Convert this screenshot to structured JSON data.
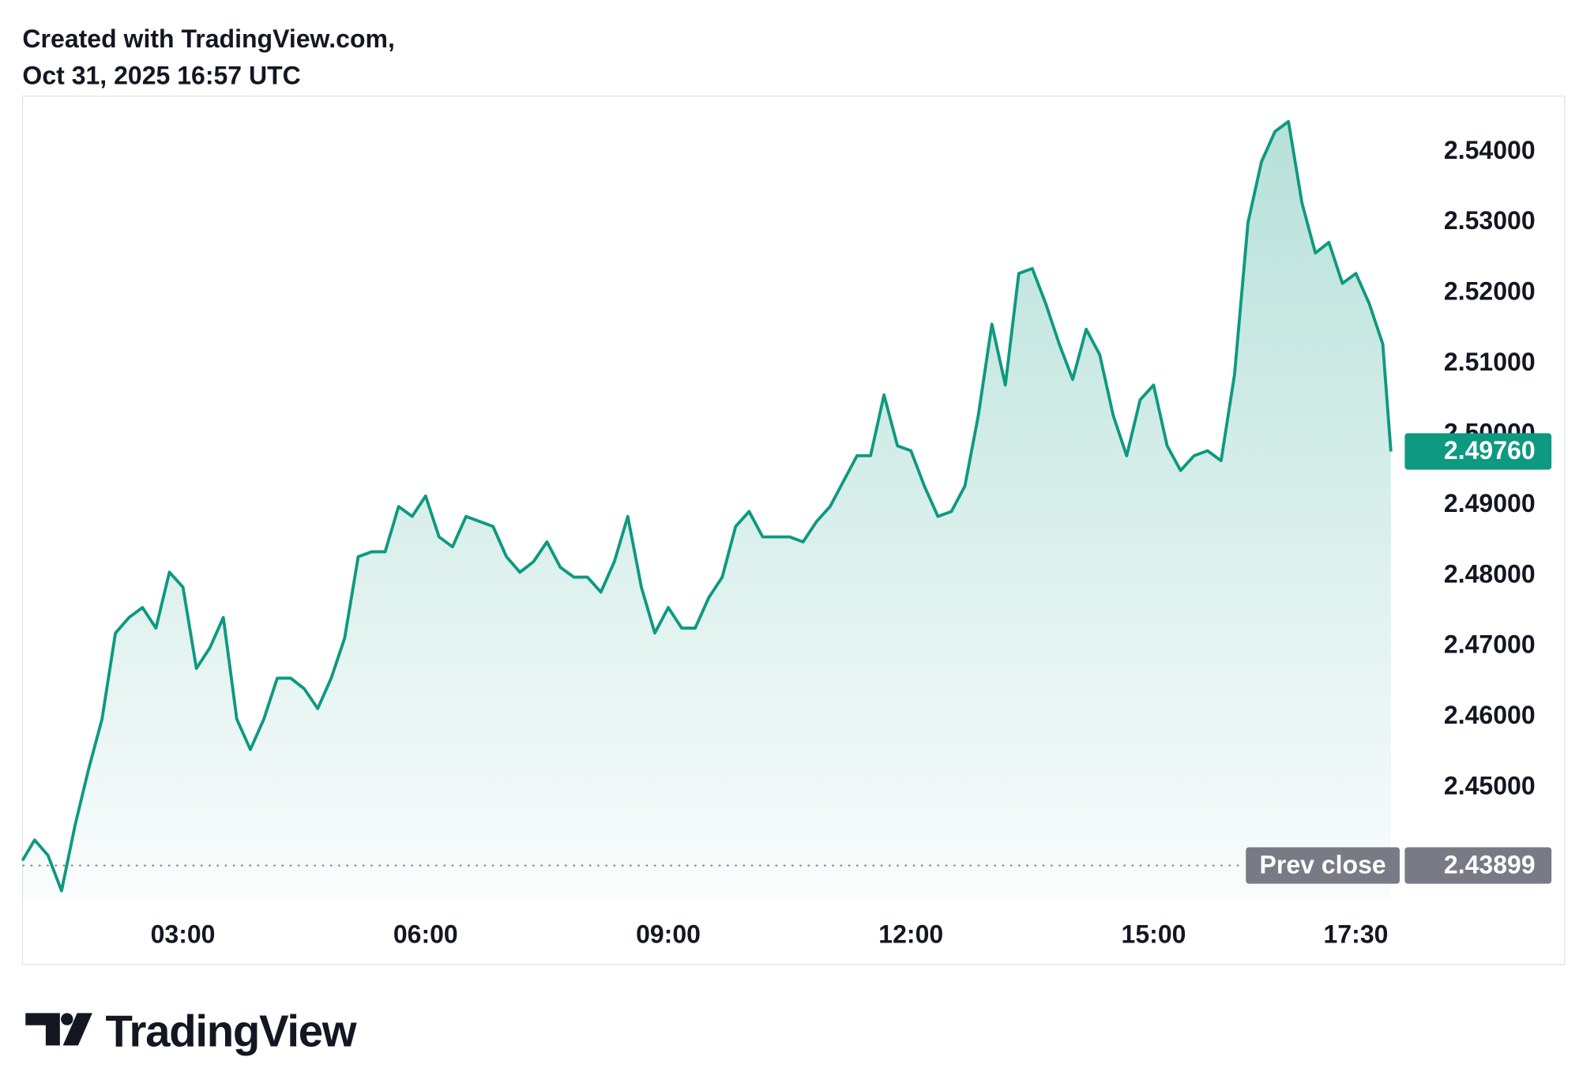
{
  "header": {
    "line1": "Created with TradingView.com,",
    "line2": "Oct 31, 2025 16:57 UTC"
  },
  "footer": {
    "brand": "TradingView"
  },
  "chart_data": {
    "type": "area",
    "color": "#0e9981",
    "x": [
      "01:01",
      "01:10",
      "01:20",
      "01:30",
      "01:40",
      "01:50",
      "02:00",
      "02:10",
      "02:20",
      "02:30",
      "02:40",
      "02:50",
      "03:00",
      "03:10",
      "03:20",
      "03:30",
      "03:40",
      "03:50",
      "04:00",
      "04:10",
      "04:20",
      "04:30",
      "04:40",
      "04:50",
      "05:00",
      "05:10",
      "05:20",
      "05:30",
      "05:40",
      "05:50",
      "06:00",
      "06:10",
      "06:20",
      "06:30",
      "06:40",
      "06:50",
      "07:00",
      "07:10",
      "07:20",
      "07:30",
      "07:40",
      "07:50",
      "08:00",
      "08:10",
      "08:20",
      "08:30",
      "08:40",
      "08:50",
      "09:00",
      "09:10",
      "09:20",
      "09:30",
      "09:40",
      "09:50",
      "10:00",
      "10:10",
      "10:20",
      "10:30",
      "10:40",
      "10:50",
      "11:00",
      "11:10",
      "11:20",
      "11:30",
      "11:40",
      "11:50",
      "12:00",
      "12:10",
      "12:20",
      "12:30",
      "12:40",
      "12:50",
      "13:00",
      "13:10",
      "13:20",
      "13:30",
      "13:40",
      "13:50",
      "14:00",
      "14:10",
      "14:20",
      "14:30",
      "14:40",
      "14:50",
      "15:00",
      "15:10",
      "15:20",
      "15:30",
      "15:40",
      "15:50",
      "16:00",
      "16:10",
      "16:20",
      "16:30",
      "16:40",
      "16:50",
      "17:00",
      "17:10",
      "17:20",
      "17:30",
      "17:40",
      "17:50",
      "17:56"
    ],
    "values": [
      2.4397,
      2.4426,
      2.4404,
      2.4354,
      2.4447,
      2.4526,
      2.4597,
      2.4719,
      2.4741,
      2.4755,
      2.4726,
      2.4805,
      2.4784,
      2.4669,
      2.4698,
      2.4741,
      2.4597,
      2.4554,
      2.4597,
      2.4655,
      2.4655,
      2.464,
      2.4612,
      2.4655,
      2.4712,
      2.4827,
      2.4834,
      2.4834,
      2.4898,
      2.4884,
      2.4913,
      2.4855,
      2.4841,
      2.4884,
      2.4877,
      2.487,
      2.4827,
      2.4805,
      2.482,
      2.4848,
      2.4812,
      2.4798,
      2.4798,
      2.4777,
      2.482,
      2.4884,
      2.4784,
      2.4719,
      2.4755,
      2.4726,
      2.4726,
      2.4769,
      2.4798,
      2.487,
      2.4891,
      2.4855,
      2.4855,
      2.4855,
      2.4848,
      2.4877,
      2.4898,
      2.4934,
      2.497,
      2.497,
      2.5056,
      2.4984,
      2.4977,
      2.4927,
      2.4884,
      2.4891,
      2.4927,
      2.5027,
      2.5156,
      2.507,
      2.5228,
      2.5235,
      2.5185,
      2.5128,
      2.5078,
      2.5149,
      2.5113,
      2.5027,
      2.497,
      2.5049,
      2.507,
      2.4984,
      2.4949,
      2.497,
      2.4977,
      2.4963,
      2.5085,
      2.53,
      2.5386,
      2.5429,
      2.5443,
      2.5328,
      2.5257,
      2.5272,
      2.5214,
      2.5228,
      2.5185,
      2.5128,
      2.4976
    ],
    "xlim": [
      "01:01",
      "18:04"
    ],
    "xticks": [
      "03:00",
      "06:00",
      "09:00",
      "12:00",
      "15:00",
      "17:30"
    ],
    "ylim": [
      2.434,
      2.5479
    ],
    "yticks": [
      {
        "value": 2.45,
        "label": "2.45000"
      },
      {
        "value": 2.46,
        "label": "2.46000"
      },
      {
        "value": 2.47,
        "label": "2.47000"
      },
      {
        "value": 2.48,
        "label": "2.48000"
      },
      {
        "value": 2.49,
        "label": "2.49000"
      },
      {
        "value": 2.5,
        "label": "2.50000"
      },
      {
        "value": 2.51,
        "label": "2.51000"
      },
      {
        "value": 2.52,
        "label": "2.52000"
      },
      {
        "value": 2.53,
        "label": "2.53000"
      },
      {
        "value": 2.54,
        "label": "2.54000"
      }
    ],
    "last_price": {
      "value": 2.4976,
      "label": "2.49760"
    },
    "prev_close": 2.43899,
    "prev_close_label": "Prev close"
  }
}
